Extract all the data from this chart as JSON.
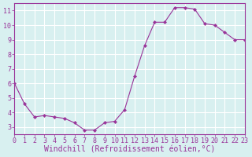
{
  "x": [
    0,
    1,
    2,
    3,
    4,
    5,
    6,
    7,
    8,
    9,
    10,
    11,
    12,
    13,
    14,
    15,
    16,
    17,
    18,
    19,
    20,
    21,
    22,
    23
  ],
  "y": [
    6.0,
    4.6,
    3.7,
    3.8,
    3.7,
    3.6,
    3.3,
    2.8,
    2.8,
    3.3,
    3.4,
    4.2,
    6.5,
    8.6,
    10.2,
    10.2,
    11.2,
    11.2,
    11.1,
    10.1,
    10.0,
    9.5,
    9.0,
    9.0
  ],
  "line_color": "#993399",
  "marker_color": "#993399",
  "bg_color": "#d8f0f0",
  "grid_color": "#ffffff",
  "xlabel": "Windchill (Refroidissement éolien,°C)",
  "xlim": [
    0,
    23
  ],
  "ylim": [
    2.5,
    11.5
  ],
  "yticks": [
    3,
    4,
    5,
    6,
    7,
    8,
    9,
    10,
    11
  ],
  "xticks": [
    0,
    1,
    2,
    3,
    4,
    5,
    6,
    7,
    8,
    9,
    10,
    11,
    12,
    13,
    14,
    15,
    16,
    17,
    18,
    19,
    20,
    21,
    22,
    23
  ],
  "label_fontsize": 7,
  "tick_fontsize": 6
}
